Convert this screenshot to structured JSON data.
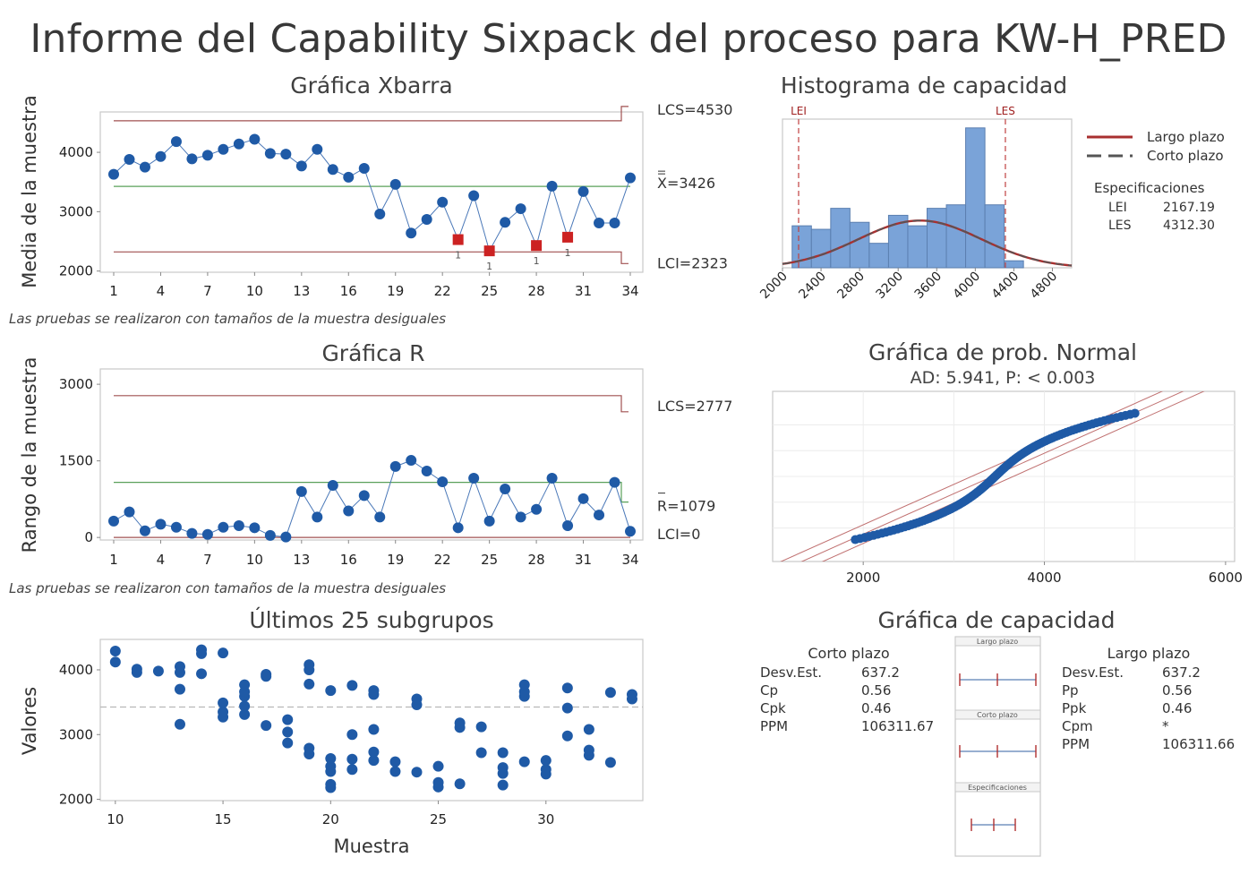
{
  "report_title": "Informe del Capability Sixpack del proceso para KW-H_PRED",
  "footer_note": "Las pruebas se realizaron con tamaños de la muestra desiguales",
  "colors": {
    "point": "#1f5aa6",
    "limit": "#a05050",
    "center": "#5aa05a",
    "out": "#cc2222",
    "bar": "#7aa3d8",
    "curve": "#a02020"
  },
  "chart_data": [
    {
      "type": "line",
      "title": "Gráfica Xbarra",
      "ylabel": "Media de la muestra",
      "x": [
        1,
        2,
        3,
        4,
        5,
        6,
        7,
        8,
        9,
        10,
        11,
        12,
        13,
        14,
        15,
        16,
        17,
        18,
        19,
        20,
        21,
        22,
        23,
        24,
        25,
        26,
        27,
        28,
        29,
        30,
        31,
        32,
        33,
        34
      ],
      "values": [
        3630,
        3880,
        3750,
        3930,
        4180,
        3890,
        3950,
        4050,
        4140,
        4220,
        3980,
        3970,
        3770,
        4050,
        3710,
        3580,
        3730,
        2960,
        3460,
        2640,
        2870,
        3160,
        2530,
        3270,
        2340,
        2820,
        3050,
        2430,
        3430,
        2570,
        3340,
        2810,
        2810,
        3570
      ],
      "out_of_control": [
        {
          "x": 23,
          "label": "1"
        },
        {
          "x": 25,
          "label": "1"
        },
        {
          "x": 28,
          "label": "1"
        },
        {
          "x": 30,
          "label": "1"
        }
      ],
      "x_ticks": [
        "1",
        "4",
        "7",
        "10",
        "13",
        "16",
        "19",
        "22",
        "25",
        "28",
        "31",
        "34"
      ],
      "y_ticks": [
        "2000",
        "3000",
        "4000"
      ],
      "ylim": [
        1980,
        4680
      ],
      "limits": {
        "ucl": 4530,
        "center": 3426,
        "lcl": 2323
      },
      "limit_labels": {
        "ucl": "LCS=4530",
        "center": "X=3426",
        "lcl": "LCI=2323"
      }
    },
    {
      "type": "line",
      "title": "Gráfica R",
      "ylabel": "Rango de la muestra",
      "x": [
        1,
        2,
        3,
        4,
        5,
        6,
        7,
        8,
        9,
        10,
        11,
        12,
        13,
        14,
        15,
        16,
        17,
        18,
        19,
        20,
        21,
        22,
        23,
        24,
        25,
        26,
        27,
        28,
        29,
        30,
        31,
        32,
        33,
        34
      ],
      "values": [
        320,
        500,
        130,
        260,
        200,
        80,
        60,
        200,
        230,
        190,
        40,
        10,
        900,
        400,
        1020,
        520,
        820,
        400,
        1390,
        1510,
        1300,
        1090,
        190,
        1160,
        320,
        950,
        400,
        550,
        1160,
        230,
        760,
        440,
        1080,
        120
      ],
      "x_ticks": [
        "1",
        "4",
        "7",
        "10",
        "13",
        "16",
        "19",
        "22",
        "25",
        "28",
        "31",
        "34"
      ],
      "y_ticks": [
        "0",
        "1500",
        "3000"
      ],
      "ylim": [
        -50,
        3300
      ],
      "limits": {
        "ucl": 2777,
        "center": 1079,
        "lcl": 0
      },
      "limit_labels": {
        "ucl": "LCS=2777",
        "center": "R=1079",
        "lcl": "LCI=0"
      }
    },
    {
      "type": "scatter",
      "title": "Últimos 25 subgrupos",
      "ylabel": "Valores",
      "xlabel": "Muestra",
      "x_ticks": [
        "10",
        "15",
        "20",
        "25",
        "30"
      ],
      "y_ticks": [
        "2000",
        "3000",
        "4000"
      ],
      "xlim": [
        9.3,
        34.5
      ],
      "ylim": [
        1980,
        4470
      ],
      "reference": 3426,
      "subgroups": [
        {
          "x": 10,
          "values": [
            4120,
            4290
          ]
        },
        {
          "x": 11,
          "values": [
            3960,
            4010
          ]
        },
        {
          "x": 12,
          "values": [
            3980
          ]
        },
        {
          "x": 13,
          "values": [
            3160,
            3700,
            3960,
            4050
          ]
        },
        {
          "x": 14,
          "values": [
            3940,
            4250,
            4310
          ]
        },
        {
          "x": 15,
          "values": [
            3270,
            3350,
            3490,
            4260
          ]
        },
        {
          "x": 16,
          "values": [
            3310,
            3440,
            3590,
            3660,
            3770
          ]
        },
        {
          "x": 17,
          "values": [
            3140,
            3900,
            3930
          ]
        },
        {
          "x": 18,
          "values": [
            2870,
            3040,
            3230
          ]
        },
        {
          "x": 19,
          "values": [
            2700,
            2790,
            3780,
            4000,
            4080
          ]
        },
        {
          "x": 20,
          "values": [
            2180,
            2230,
            2430,
            2510,
            2630,
            3680
          ]
        },
        {
          "x": 21,
          "values": [
            2460,
            2620,
            3000,
            3760
          ]
        },
        {
          "x": 22,
          "values": [
            2600,
            2730,
            3080,
            3620,
            3680
          ]
        },
        {
          "x": 23,
          "values": [
            2430,
            2580
          ]
        },
        {
          "x": 24,
          "values": [
            2420,
            3460,
            3550
          ]
        },
        {
          "x": 25,
          "values": [
            2190,
            2260,
            2510
          ]
        },
        {
          "x": 26,
          "values": [
            2240,
            3110,
            3180
          ]
        },
        {
          "x": 27,
          "values": [
            2720,
            3120
          ]
        },
        {
          "x": 28,
          "values": [
            2220,
            2400,
            2490,
            2720
          ]
        },
        {
          "x": 29,
          "values": [
            2580,
            3590,
            3660,
            3770
          ]
        },
        {
          "x": 30,
          "values": [
            2390,
            2460,
            2600
          ]
        },
        {
          "x": 31,
          "values": [
            2980,
            3410,
            3720
          ]
        },
        {
          "x": 32,
          "values": [
            2680,
            2760,
            3080
          ]
        },
        {
          "x": 33,
          "values": [
            2570,
            3650
          ]
        },
        {
          "x": 34,
          "values": [
            3550,
            3620
          ]
        }
      ]
    },
    {
      "type": "bar",
      "title": "Histograma de capacidad",
      "x_ticks": [
        "2000",
        "2400",
        "2800",
        "3200",
        "3600",
        "4000",
        "4400",
        "4800"
      ],
      "bin_start": 2100,
      "bin_width": 200,
      "values": [
        12,
        11,
        17,
        13,
        7,
        15,
        12,
        17,
        18,
        40,
        18,
        2
      ],
      "xlim": [
        2000,
        5000
      ],
      "ylim": [
        0,
        42
      ],
      "lei": 2167.19,
      "les": 4312.3,
      "lei_label": "LEI",
      "les_label": "LES",
      "legend": [
        {
          "name": "Largo plazo",
          "style": "solid"
        },
        {
          "name": "Corto plazo",
          "style": "dashed"
        }
      ],
      "spec_title": "Especificaciones",
      "specs": [
        {
          "label": "LEI",
          "value": "2167.19"
        },
        {
          "label": "LES",
          "value": "4312.30"
        }
      ],
      "mean": 3426,
      "sd": 637.2
    },
    {
      "type": "scatter",
      "title": "Gráfica de prob. Normal",
      "subtitle": "AD: 5.941, P: < 0.003",
      "x_ticks": [
        "2000",
        "4000",
        "6000"
      ],
      "xlim": [
        1000,
        6100
      ],
      "ylim": [
        -3.3,
        3.3
      ],
      "mean": 3426,
      "sd": 637.2,
      "n_points": 120
    },
    {
      "type": "table",
      "title": "Gráfica de capacidad",
      "short_term": {
        "header": "Corto plazo",
        "rows": [
          [
            "Desv.Est.",
            "637.2"
          ],
          [
            "Cp",
            "0.56"
          ],
          [
            "Cpk",
            "0.46"
          ],
          [
            "PPM",
            "106311.67"
          ]
        ]
      },
      "long_term": {
        "header": "Largo plazo",
        "rows": [
          [
            "Desv.Est.",
            "637.2"
          ],
          [
            "Pp",
            "0.56"
          ],
          [
            "Ppk",
            "0.46"
          ],
          [
            "Cpm",
            "*"
          ],
          [
            "PPM",
            "106311.66"
          ]
        ]
      },
      "interval_labels": [
        "Largo plazo",
        "Corto plazo",
        "Especificaciones"
      ]
    }
  ]
}
